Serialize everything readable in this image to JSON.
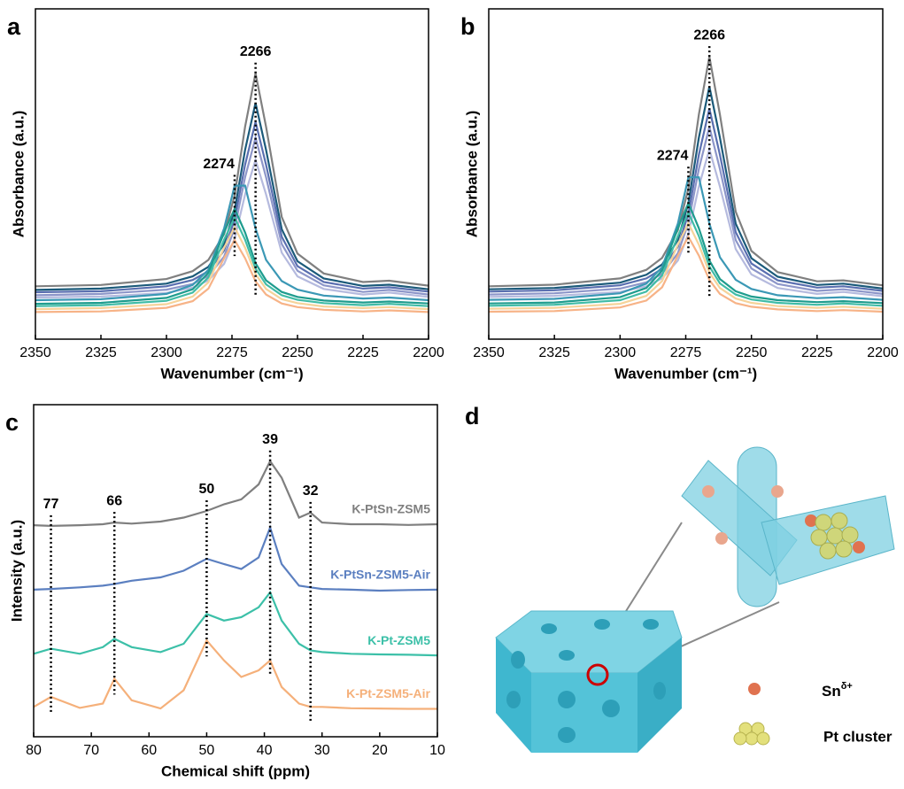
{
  "chart_data": [
    {
      "type": "line",
      "panel": "a",
      "xlabel": "Wavenumber (cm⁻¹)",
      "ylabel": "Absorbance (a.u.)",
      "x": [
        2350,
        2325,
        2300,
        2290,
        2284,
        2278,
        2274,
        2270,
        2266,
        2262,
        2256,
        2250,
        2240,
        2225,
        2215,
        2200
      ],
      "xlim": [
        2350,
        2200
      ],
      "xticks": [
        2350,
        2325,
        2300,
        2275,
        2250,
        2225,
        2200
      ],
      "ylim": [
        0,
        100
      ],
      "yticks": [],
      "vlines": [
        2274,
        2266
      ],
      "series": [
        {
          "color": "#808080",
          "values": [
            16.0,
            16.4,
            18.2,
            20.6,
            24.0,
            31.8,
            43.5,
            64.3,
            80.5,
            64.3,
            37.0,
            25.9,
            19.9,
            17.3,
            17.7,
            16.2
          ]
        },
        {
          "color": "#1b5a7a",
          "values": [
            14.9,
            15.3,
            16.8,
            19.0,
            21.9,
            28.8,
            39.0,
            57.3,
            71.5,
            57.3,
            33.3,
            23.6,
            18.4,
            16.1,
            16.5,
            15.1
          ]
        },
        {
          "color": "#5a6fb0",
          "values": [
            14.2,
            14.5,
            16.0,
            17.9,
            20.6,
            26.8,
            36.2,
            52.8,
            65.8,
            52.8,
            31.0,
            22.1,
            17.3,
            15.3,
            15.7,
            14.4
          ]
        },
        {
          "color": "#8d96c9",
          "values": [
            13.3,
            13.7,
            15.0,
            16.7,
            19.2,
            25.0,
            33.6,
            49.0,
            61.0,
            49.0,
            28.8,
            20.7,
            16.3,
            14.3,
            14.9,
            13.5
          ]
        },
        {
          "color": "#b5bade",
          "values": [
            12.6,
            12.9,
            14.0,
            15.6,
            17.8,
            22.8,
            30.4,
            43.8,
            54.3,
            43.8,
            26.2,
            19.0,
            15.2,
            13.5,
            14.1,
            12.8
          ]
        },
        {
          "color": "#3b98b5",
          "values": [
            11.8,
            12.1,
            13.7,
            16.4,
            21.0,
            33.5,
            46.5,
            46.5,
            33.5,
            24.0,
            17.6,
            15.0,
            13.2,
            12.3,
            12.6,
            11.8
          ]
        },
        {
          "color": "#1e9c8e",
          "values": [
            10.7,
            11.0,
            12.5,
            15.1,
            20.1,
            32.3,
            39.5,
            32.3,
            23.0,
            17.8,
            14.3,
            12.8,
            11.7,
            11.1,
            11.4,
            10.8
          ]
        },
        {
          "color": "#40bca6",
          "values": [
            10.0,
            10.3,
            11.6,
            14.1,
            18.7,
            30.1,
            36.8,
            30.1,
            21.4,
            16.6,
            13.3,
            11.9,
            10.9,
            10.3,
            10.7,
            10.0
          ]
        },
        {
          "color": "#f5d39a",
          "values": [
            9.1,
            9.4,
            10.6,
            12.9,
            17.2,
            27.7,
            33.9,
            27.7,
            19.7,
            15.2,
            12.1,
            10.9,
            9.9,
            9.4,
            9.7,
            9.1
          ]
        },
        {
          "color": "#f7b387",
          "values": [
            8.2,
            8.4,
            9.5,
            11.5,
            15.3,
            24.5,
            30.0,
            24.5,
            17.5,
            13.5,
            10.8,
            9.7,
            8.9,
            8.4,
            8.7,
            8.2
          ]
        }
      ]
    },
    {
      "type": "line",
      "panel": "b",
      "xlabel": "Wavenumber (cm⁻¹)",
      "ylabel": "Absorbance (a.u.)",
      "x": [
        2350,
        2325,
        2300,
        2290,
        2284,
        2278,
        2274,
        2270,
        2266,
        2262,
        2256,
        2250,
        2240,
        2225,
        2215,
        2200
      ],
      "xlim": [
        2350,
        2200
      ],
      "xticks": [
        2350,
        2325,
        2300,
        2275,
        2250,
        2225,
        2200
      ],
      "ylim": [
        0,
        100
      ],
      "yticks": [],
      "vlines": [
        2274,
        2266
      ],
      "series": [
        {
          "color": "#808080",
          "values": [
            16.0,
            16.5,
            18.4,
            21.0,
            24.6,
            33.0,
            45.6,
            68.0,
            85.5,
            68.0,
            38.6,
            26.7,
            20.3,
            17.5,
            17.8,
            16.3
          ]
        },
        {
          "color": "#1b5a7a",
          "values": [
            15.1,
            15.5,
            17.1,
            19.5,
            22.6,
            30.0,
            41.2,
            61.0,
            76.5,
            61.0,
            35.0,
            24.5,
            18.9,
            16.4,
            16.8,
            15.3
          ]
        },
        {
          "color": "#5a6fb0",
          "values": [
            14.4,
            14.8,
            16.3,
            18.4,
            21.3,
            28.0,
            38.0,
            55.8,
            69.8,
            55.8,
            32.4,
            22.9,
            17.8,
            15.6,
            16.0,
            14.6
          ]
        },
        {
          "color": "#8d96c9",
          "values": [
            13.5,
            13.9,
            15.3,
            17.2,
            19.8,
            26.0,
            35.2,
            51.5,
            64.3,
            51.5,
            30.0,
            21.4,
            16.7,
            14.6,
            15.1,
            13.7
          ]
        },
        {
          "color": "#b5bade",
          "values": [
            12.8,
            13.1,
            14.3,
            16.0,
            18.4,
            23.8,
            31.9,
            46.2,
            57.5,
            46.2,
            27.3,
            19.6,
            15.5,
            13.7,
            14.3,
            13.0
          ]
        },
        {
          "color": "#3b98b5",
          "values": [
            11.9,
            12.2,
            13.9,
            16.8,
            21.8,
            35.0,
            49.0,
            49.0,
            35.0,
            24.8,
            18.0,
            15.2,
            13.3,
            12.4,
            12.7,
            11.9
          ]
        },
        {
          "color": "#1e9c8e",
          "values": [
            10.8,
            11.1,
            12.7,
            15.5,
            20.8,
            33.6,
            41.2,
            33.6,
            23.8,
            18.2,
            14.5,
            12.9,
            11.8,
            11.2,
            11.5,
            10.9
          ]
        },
        {
          "color": "#40bca6",
          "values": [
            10.1,
            10.4,
            11.8,
            14.4,
            19.3,
            31.2,
            38.3,
            31.2,
            22.0,
            16.9,
            13.5,
            12.0,
            11.0,
            10.4,
            10.8,
            10.1
          ]
        },
        {
          "color": "#f5d39a",
          "values": [
            9.2,
            9.5,
            10.7,
            13.1,
            17.6,
            28.6,
            35.1,
            28.6,
            20.2,
            15.5,
            12.3,
            11.0,
            10.0,
            9.5,
            9.8,
            9.2
          ]
        },
        {
          "color": "#f7b387",
          "values": [
            8.3,
            8.5,
            9.6,
            11.7,
            15.7,
            25.3,
            31.0,
            25.3,
            17.9,
            13.7,
            10.9,
            9.8,
            9.0,
            8.5,
            8.8,
            8.3
          ]
        }
      ]
    },
    {
      "type": "line",
      "panel": "c",
      "xlabel": "Chemical shift (ppm)",
      "ylabel": "Intensity (a.u.)",
      "x": [
        80,
        77,
        72,
        68,
        66,
        63,
        58,
        54,
        50,
        47,
        44,
        41,
        39,
        37,
        34,
        32,
        30,
        25,
        20,
        15,
        10
      ],
      "xlim": [
        80,
        10
      ],
      "xticks": [
        80,
        70,
        60,
        50,
        40,
        30,
        20,
        10
      ],
      "ylim": [
        0,
        100
      ],
      "yticks": [],
      "vlines": [
        77,
        66,
        50,
        39,
        32
      ],
      "series": [
        {
          "name": "K-PtSn-ZSM5",
          "color": "#7f7f7f",
          "values": [
            63.7,
            63.5,
            63.7,
            64.0,
            64.5,
            64.2,
            64.8,
            66.0,
            68.0,
            70.0,
            71.5,
            76.0,
            83.0,
            78.0,
            66.0,
            67.5,
            64.5,
            64.0,
            64.0,
            63.8,
            64.0
          ]
        },
        {
          "name": "K-PtSn-ZSM5-Air",
          "color": "#5b7fc0",
          "values": [
            44.3,
            44.5,
            45.0,
            45.5,
            46.0,
            47.0,
            48.0,
            50.0,
            53.6,
            52.0,
            50.5,
            54.0,
            63.0,
            52.0,
            45.5,
            45.0,
            44.5,
            44.3,
            44.0,
            44.2,
            44.3
          ]
        },
        {
          "name": "K-Pt-ZSM5",
          "color": "#3cc0a8",
          "values": [
            25.0,
            26.5,
            25.0,
            27.0,
            29.5,
            27.0,
            25.5,
            28.0,
            37.0,
            35.0,
            36.0,
            39.0,
            43.5,
            35.0,
            28.0,
            26.0,
            25.5,
            25.0,
            24.8,
            24.7,
            24.5
          ]
        },
        {
          "name": "K-Pt-ZSM5-Air",
          "color": "#f5b07a",
          "values": [
            9.0,
            12.0,
            8.7,
            10.0,
            17.5,
            11.0,
            8.5,
            14.0,
            29.0,
            23.0,
            18.0,
            20.0,
            23.0,
            15.0,
            10.0,
            9.0,
            9.0,
            8.6,
            8.5,
            8.4,
            8.4
          ]
        }
      ]
    }
  ],
  "diagram": {
    "panel": "d",
    "legend": [
      {
        "label": "Sn",
        "sup": "δ+"
      },
      {
        "label": "Pt cluster"
      }
    ]
  }
}
